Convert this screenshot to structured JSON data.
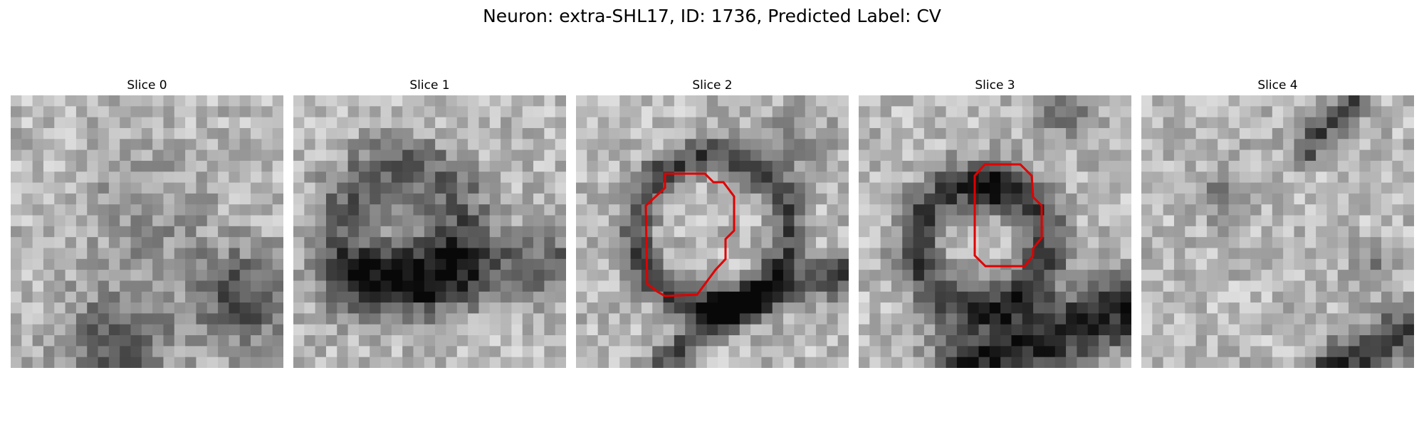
{
  "figure": {
    "title": "Neuron: extra-SHL17, ID: 1736, Predicted Label: CV",
    "outline_color": "#e00000"
  },
  "panels": [
    {
      "label": "Slice 0",
      "has_contour": false
    },
    {
      "label": "Slice 1",
      "has_contour": false
    },
    {
      "label": "Slice 2",
      "has_contour": true
    },
    {
      "label": "Slice 3",
      "has_contour": true
    },
    {
      "label": "Slice 4",
      "has_contour": false
    }
  ]
}
